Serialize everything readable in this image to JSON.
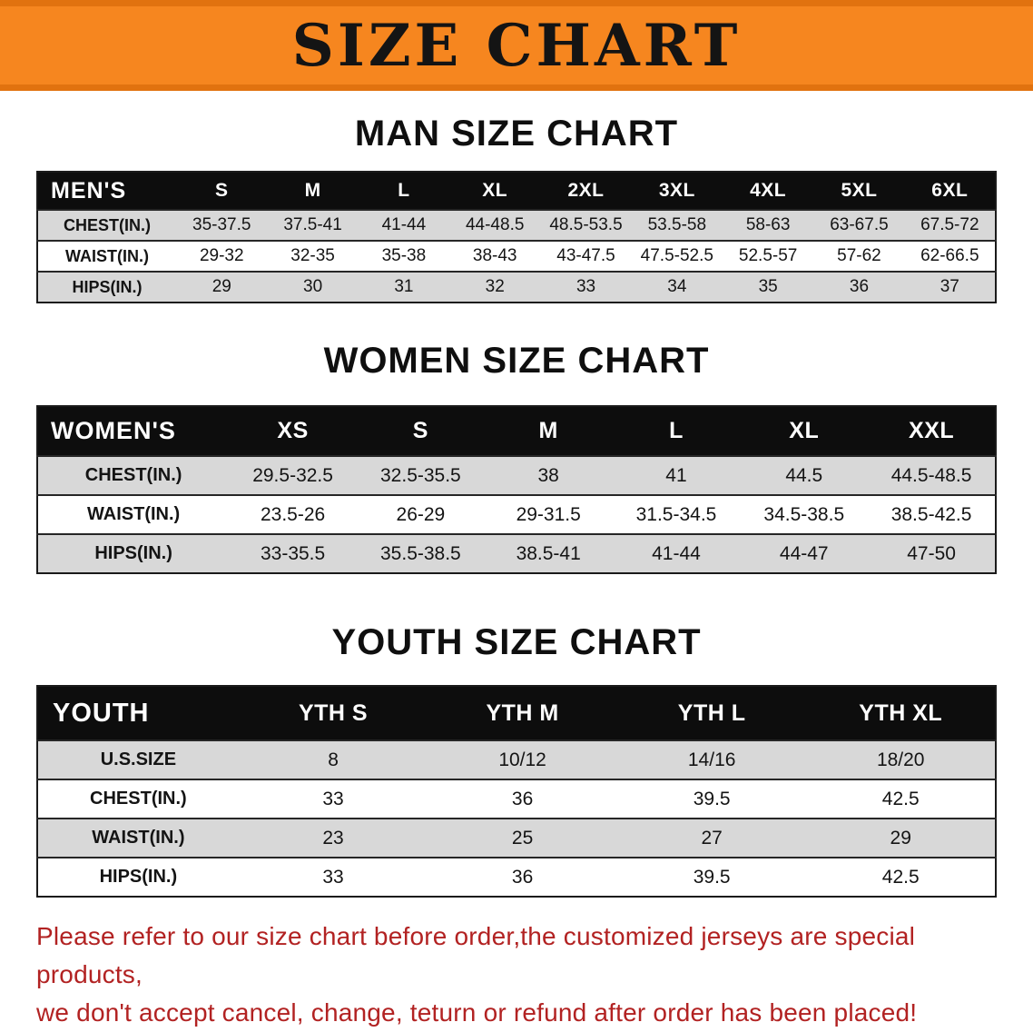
{
  "banner": {
    "title": "SIZE CHART"
  },
  "sections": [
    {
      "heading": "MAN SIZE CHART",
      "corner": "MEN'S",
      "columns": [
        "S",
        "M",
        "L",
        "XL",
        "2XL",
        "3XL",
        "4XL",
        "5XL",
        "6XL"
      ],
      "rows": [
        {
          "label": "CHEST(IN.)",
          "values": [
            "35-37.5",
            "37.5-41",
            "41-44",
            "44-48.5",
            "48.5-53.5",
            "53.5-58",
            "58-63",
            "63-67.5",
            "67.5-72"
          ]
        },
        {
          "label": "WAIST(IN.)",
          "values": [
            "29-32",
            "32-35",
            "35-38",
            "38-43",
            "43-47.5",
            "47.5-52.5",
            "52.5-57",
            "57-62",
            "62-66.5"
          ]
        },
        {
          "label": "HIPS(IN.)",
          "values": [
            "29",
            "30",
            "31",
            "32",
            "33",
            "34",
            "35",
            "36",
            "37"
          ]
        }
      ]
    },
    {
      "heading": "WOMEN SIZE CHART",
      "corner": "WOMEN'S",
      "columns": [
        "XS",
        "S",
        "M",
        "L",
        "XL",
        "XXL"
      ],
      "rows": [
        {
          "label": "CHEST(IN.)",
          "values": [
            "29.5-32.5",
            "32.5-35.5",
            "38",
            "41",
            "44.5",
            "44.5-48.5"
          ]
        },
        {
          "label": "WAIST(IN.)",
          "values": [
            "23.5-26",
            "26-29",
            "29-31.5",
            "31.5-34.5",
            "34.5-38.5",
            "38.5-42.5"
          ]
        },
        {
          "label": "HIPS(IN.)",
          "values": [
            "33-35.5",
            "35.5-38.5",
            "38.5-41",
            "41-44",
            "44-47",
            "47-50"
          ]
        }
      ]
    },
    {
      "heading": "YOUTH SIZE CHART",
      "corner": "YOUTH",
      "columns": [
        "YTH S",
        "YTH M",
        "YTH L",
        "YTH XL"
      ],
      "rows": [
        {
          "label": "U.S.SIZE",
          "values": [
            "8",
            "10/12",
            "14/16",
            "18/20"
          ]
        },
        {
          "label": "CHEST(IN.)",
          "values": [
            "33",
            "36",
            "39.5",
            "42.5"
          ]
        },
        {
          "label": "WAIST(IN.)",
          "values": [
            "23",
            "25",
            "27",
            "29"
          ]
        },
        {
          "label": "HIPS(IN.)",
          "values": [
            "33",
            "36",
            "39.5",
            "42.5"
          ]
        }
      ]
    }
  ],
  "disclaimer": {
    "line1": "Please refer to our size chart before order,the customized jerseys are special products,",
    "line2": "we don't accept cancel, change, teturn or refund after order has been placed!"
  },
  "colors": {
    "banner_orange": "#F6861F",
    "banner_orange_dark": "#E1720F",
    "header_black": "#0D0D0D",
    "row_gray": "#D8D8D8",
    "disclaimer_red": "#B22222"
  }
}
